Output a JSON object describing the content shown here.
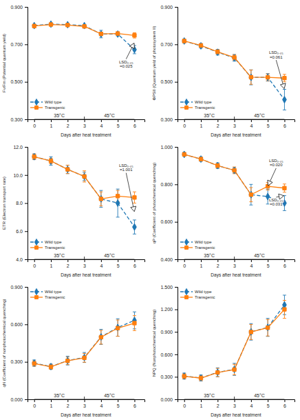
{
  "chart_data": [
    {
      "type": "line",
      "x": [
        0,
        1,
        2,
        3,
        4,
        5,
        6
      ],
      "xlabel": "Days after heat treatment",
      "ylabel": "Fv/Fm (Potential quantum yield)",
      "xlim": [
        -0.4,
        6.6
      ],
      "xticks": [
        0,
        1,
        2,
        3,
        4,
        5,
        6
      ],
      "ylim": [
        0.3,
        0.9
      ],
      "yticks": [
        {
          "value": 0.3,
          "label": "0.300"
        },
        {
          "value": 0.5,
          "label": "0.500"
        },
        {
          "value": 0.7,
          "label": "0.700"
        },
        {
          "value": 0.9,
          "label": "0.900"
        }
      ],
      "grid": false,
      "legend": "lower left",
      "series": [
        {
          "name": "Wild type",
          "line_style": "dashed",
          "marker": "diamond",
          "values": [
            0.8,
            0.808,
            0.805,
            0.8,
            0.755,
            0.755,
            0.672
          ],
          "errors": [
            0.006,
            0.005,
            0.005,
            0.005,
            0.02,
            0.01,
            0.022
          ]
        },
        {
          "name": "Transgenic",
          "line_style": "solid",
          "marker": "square",
          "values": [
            0.798,
            0.806,
            0.803,
            0.796,
            0.756,
            0.758,
            0.748
          ],
          "errors": [
            0.005,
            0.005,
            0.005,
            0.007,
            0.008,
            0.008,
            0.014
          ]
        }
      ],
      "regions": [
        {
          "label": "35°C",
          "x": [
            0,
            3
          ]
        },
        {
          "label": "45°C",
          "x": [
            3,
            6
          ]
        }
      ],
      "annotations": [
        {
          "text": "LSD₀.₀₅\n=0.025",
          "x": 5.5,
          "y": 0.57,
          "arrow_x": 6.0,
          "arrow_y": 0.71
        }
      ]
    },
    {
      "type": "line",
      "x": [
        0,
        1,
        2,
        3,
        4,
        5,
        6
      ],
      "xlabel": "Days after heat treatment",
      "ylabel": "ΦPSII (Quantum yield of photosystem II)",
      "xlim": [
        -0.4,
        6.6
      ],
      "xticks": [
        0,
        1,
        2,
        3,
        4,
        5,
        6
      ],
      "ylim": [
        0.3,
        0.9
      ],
      "yticks": [
        {
          "value": 0.3,
          "label": "0.300"
        },
        {
          "value": 0.5,
          "label": "0.500"
        },
        {
          "value": 0.7,
          "label": "0.700"
        },
        {
          "value": 0.9,
          "label": "0.900"
        }
      ],
      "grid": false,
      "legend": "lower left",
      "series": [
        {
          "name": "Wild type",
          "line_style": "dashed",
          "marker": "diamond",
          "values": [
            0.718,
            0.692,
            0.658,
            0.628,
            0.524,
            0.524,
            0.405
          ],
          "errors": [
            0.01,
            0.012,
            0.015,
            0.018,
            0.04,
            0.02,
            0.055
          ]
        },
        {
          "name": "Transgenic",
          "line_style": "solid",
          "marker": "square",
          "values": [
            0.718,
            0.694,
            0.66,
            0.63,
            0.525,
            0.524,
            0.52
          ],
          "errors": [
            0.01,
            0.01,
            0.012,
            0.015,
            0.038,
            0.018,
            0.02
          ]
        }
      ],
      "regions": [
        {
          "label": "35°C",
          "x": [
            0,
            3
          ]
        },
        {
          "label": "45°C",
          "x": [
            3,
            6
          ]
        }
      ],
      "annotations": [
        {
          "text": "LSD₀.₀₅\n=0.061",
          "x": 5.5,
          "y": 0.62,
          "arrow_x": 6.0,
          "arrow_y": 0.46
        }
      ]
    },
    {
      "type": "line",
      "x": [
        0,
        1,
        2,
        3,
        4,
        5,
        6
      ],
      "xlabel": "Days after heat treatment",
      "ylabel": "ETR (Electron transport rate)",
      "xlim": [
        -0.4,
        6.6
      ],
      "xticks": [
        0,
        1,
        2,
        3,
        4,
        5,
        6
      ],
      "ylim": [
        4.0,
        12.0
      ],
      "yticks": [
        {
          "value": 4.0,
          "label": "4.0"
        },
        {
          "value": 6.0,
          "label": "6.0"
        },
        {
          "value": 8.0,
          "label": "8.0"
        },
        {
          "value": 10.0,
          "label": "10.0"
        },
        {
          "value": 12.0,
          "label": "12.0"
        }
      ],
      "grid": false,
      "legend": "lower left",
      "series": [
        {
          "name": "Wild type",
          "line_style": "dashed",
          "marker": "diamond",
          "values": [
            11.3,
            11.0,
            10.4,
            9.9,
            8.3,
            8.0,
            6.3
          ],
          "errors": [
            0.2,
            0.3,
            0.3,
            0.3,
            0.6,
            1.0,
            0.5
          ]
        },
        {
          "name": "Transgenic",
          "line_style": "solid",
          "marker": "square",
          "values": [
            11.3,
            11.0,
            10.4,
            9.9,
            8.3,
            8.5,
            8.4
          ],
          "errors": [
            0.2,
            0.2,
            0.3,
            0.4,
            0.5,
            0.4,
            0.4
          ]
        }
      ],
      "regions": [
        {
          "label": "35°C",
          "x": [
            0,
            3
          ]
        },
        {
          "label": "45°C",
          "x": [
            3,
            6
          ]
        }
      ],
      "annotations": [
        {
          "text": "LSD₀.₀₅\n=1.001",
          "x": 5.5,
          "y": 10.2,
          "arrow_x": 6.0,
          "arrow_y": 7.35
        }
      ]
    },
    {
      "type": "line",
      "x": [
        0,
        1,
        2,
        3,
        4,
        5,
        6
      ],
      "xlabel": "Days after heat treatment",
      "ylabel": "qP (Coefficient of photochemical quenching)",
      "xlim": [
        -0.4,
        6.6
      ],
      "xticks": [
        0,
        1,
        2,
        3,
        4,
        5,
        6
      ],
      "ylim": [
        0.4,
        1.0
      ],
      "yticks": [
        {
          "value": 0.4,
          "label": "0.400"
        },
        {
          "value": 0.6,
          "label": "0.600"
        },
        {
          "value": 0.8,
          "label": "0.800"
        },
        {
          "value": 1.0,
          "label": "1.000"
        }
      ],
      "grid": false,
      "legend": "lower left",
      "series": [
        {
          "name": "Wild type",
          "line_style": "dashed",
          "marker": "diamond",
          "values": [
            0.96,
            0.935,
            0.9,
            0.875,
            0.745,
            0.735,
            0.7
          ],
          "errors": [
            0.01,
            0.012,
            0.015,
            0.015,
            0.055,
            0.04,
            0.04
          ]
        },
        {
          "name": "Transgenic",
          "line_style": "solid",
          "marker": "square",
          "values": [
            0.96,
            0.935,
            0.9,
            0.875,
            0.745,
            0.79,
            0.78
          ],
          "errors": [
            0.01,
            0.01,
            0.012,
            0.018,
            0.038,
            0.02,
            0.022
          ]
        }
      ],
      "regions": [
        {
          "label": "35°C",
          "x": [
            0,
            3
          ]
        },
        {
          "label": "45°C",
          "x": [
            3,
            6
          ]
        }
      ],
      "annotations": [
        {
          "text": "LSD₀.₀₅\n=0.020",
          "x": 5.5,
          "y": 0.89,
          "arrow_x": 5.0,
          "arrow_y": 0.79
        },
        {
          "text": "LSD₀.₀₅\n=0.031",
          "x": 5.5,
          "y": 0.68,
          "arrow_x": 6.0,
          "arrow_y": 0.74
        }
      ]
    },
    {
      "type": "line",
      "x": [
        0,
        1,
        2,
        3,
        4,
        5,
        6
      ],
      "xlabel": "Days after heat treatment",
      "ylabel": "qN (Coefficient of nonphotochemical quenching)",
      "xlim": [
        -0.4,
        6.6
      ],
      "xticks": [
        0,
        1,
        2,
        3,
        4,
        5,
        6
      ],
      "ylim": [
        0.0,
        0.9
      ],
      "yticks": [
        {
          "value": 0.0,
          "label": "0.000"
        },
        {
          "value": 0.3,
          "label": "0.300"
        },
        {
          "value": 0.6,
          "label": "0.600"
        },
        {
          "value": 0.9,
          "label": "0.900"
        }
      ],
      "grid": false,
      "legend": "upper left",
      "series": [
        {
          "name": "Wild type",
          "line_style": "dashed",
          "marker": "diamond",
          "values": [
            0.29,
            0.262,
            0.31,
            0.335,
            0.5,
            0.575,
            0.632
          ],
          "errors": [
            0.025,
            0.02,
            0.035,
            0.04,
            0.06,
            0.07,
            0.068
          ]
        },
        {
          "name": "Transgenic",
          "line_style": "solid",
          "marker": "square",
          "values": [
            0.287,
            0.26,
            0.308,
            0.332,
            0.497,
            0.57,
            0.61
          ],
          "errors": [
            0.022,
            0.02,
            0.03,
            0.035,
            0.055,
            0.065,
            0.06
          ]
        }
      ],
      "regions": [
        {
          "label": "35°C",
          "x": [
            0,
            3
          ]
        },
        {
          "label": "45°C",
          "x": [
            3,
            6
          ]
        }
      ]
    },
    {
      "type": "line",
      "x": [
        0,
        1,
        2,
        3,
        4,
        5,
        6
      ],
      "xlabel": "Days after heat treatment",
      "ylabel": "NPQ (Nonphotochemical quenching)",
      "xlim": [
        -0.4,
        6.6
      ],
      "xticks": [
        0,
        1,
        2,
        3,
        4,
        5,
        6
      ],
      "ylim": [
        0.0,
        1.5
      ],
      "yticks": [
        {
          "value": 0.0,
          "label": "0.000"
        },
        {
          "value": 0.3,
          "label": "0.300"
        },
        {
          "value": 0.6,
          "label": "0.600"
        },
        {
          "value": 0.9,
          "label": "0.900"
        },
        {
          "value": 1.2,
          "label": "1.200"
        },
        {
          "value": 1.5,
          "label": "1.500"
        }
      ],
      "grid": false,
      "legend": "upper left",
      "series": [
        {
          "name": "Wild type",
          "line_style": "dashed",
          "marker": "diamond",
          "values": [
            0.31,
            0.285,
            0.36,
            0.4,
            0.9,
            0.96,
            1.26
          ],
          "errors": [
            0.04,
            0.04,
            0.06,
            0.08,
            0.11,
            0.12,
            0.13
          ]
        },
        {
          "name": "Transgenic",
          "line_style": "solid",
          "marker": "square",
          "values": [
            0.308,
            0.283,
            0.358,
            0.397,
            0.898,
            0.955,
            1.2
          ],
          "errors": [
            0.035,
            0.035,
            0.055,
            0.07,
            0.1,
            0.11,
            0.12
          ]
        }
      ],
      "regions": [
        {
          "label": "35°C",
          "x": [
            0,
            3
          ]
        },
        {
          "label": "45°C",
          "x": [
            3,
            6
          ]
        }
      ]
    }
  ]
}
